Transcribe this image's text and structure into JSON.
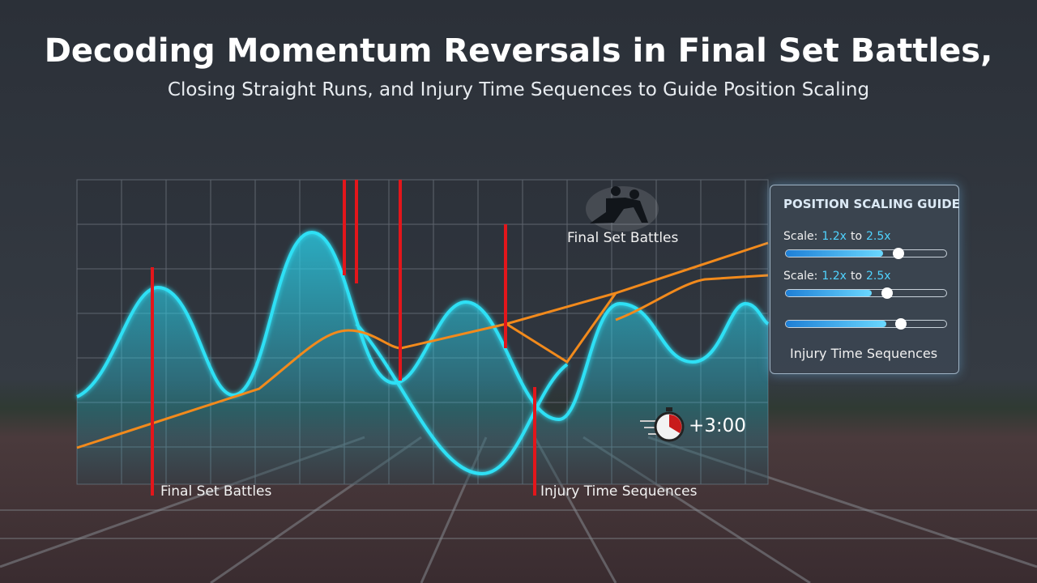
{
  "header": {
    "title": "Decoding Momentum Reversals in Final Set Battles,",
    "subtitle": "Closing Straight Runs, and Injury Time Sequences to Guide Position Scaling"
  },
  "chart": {
    "icon_label": "Final Set Battles",
    "markers": [
      {
        "label": "Final Set Battles"
      },
      {
        "label": "Injury Time Sequences"
      }
    ],
    "timer": "+3:00"
  },
  "panel": {
    "title": "POSITION SCALING GUIDE",
    "rows": [
      {
        "prefix": "Scale:",
        "from": "1.2x",
        "joiner": "to",
        "to": "2.5x"
      },
      {
        "prefix": "Scale:",
        "from": "1.2x",
        "joiner": "to",
        "to": "2.5x"
      }
    ],
    "footer": "Injury Time Sequences"
  }
}
